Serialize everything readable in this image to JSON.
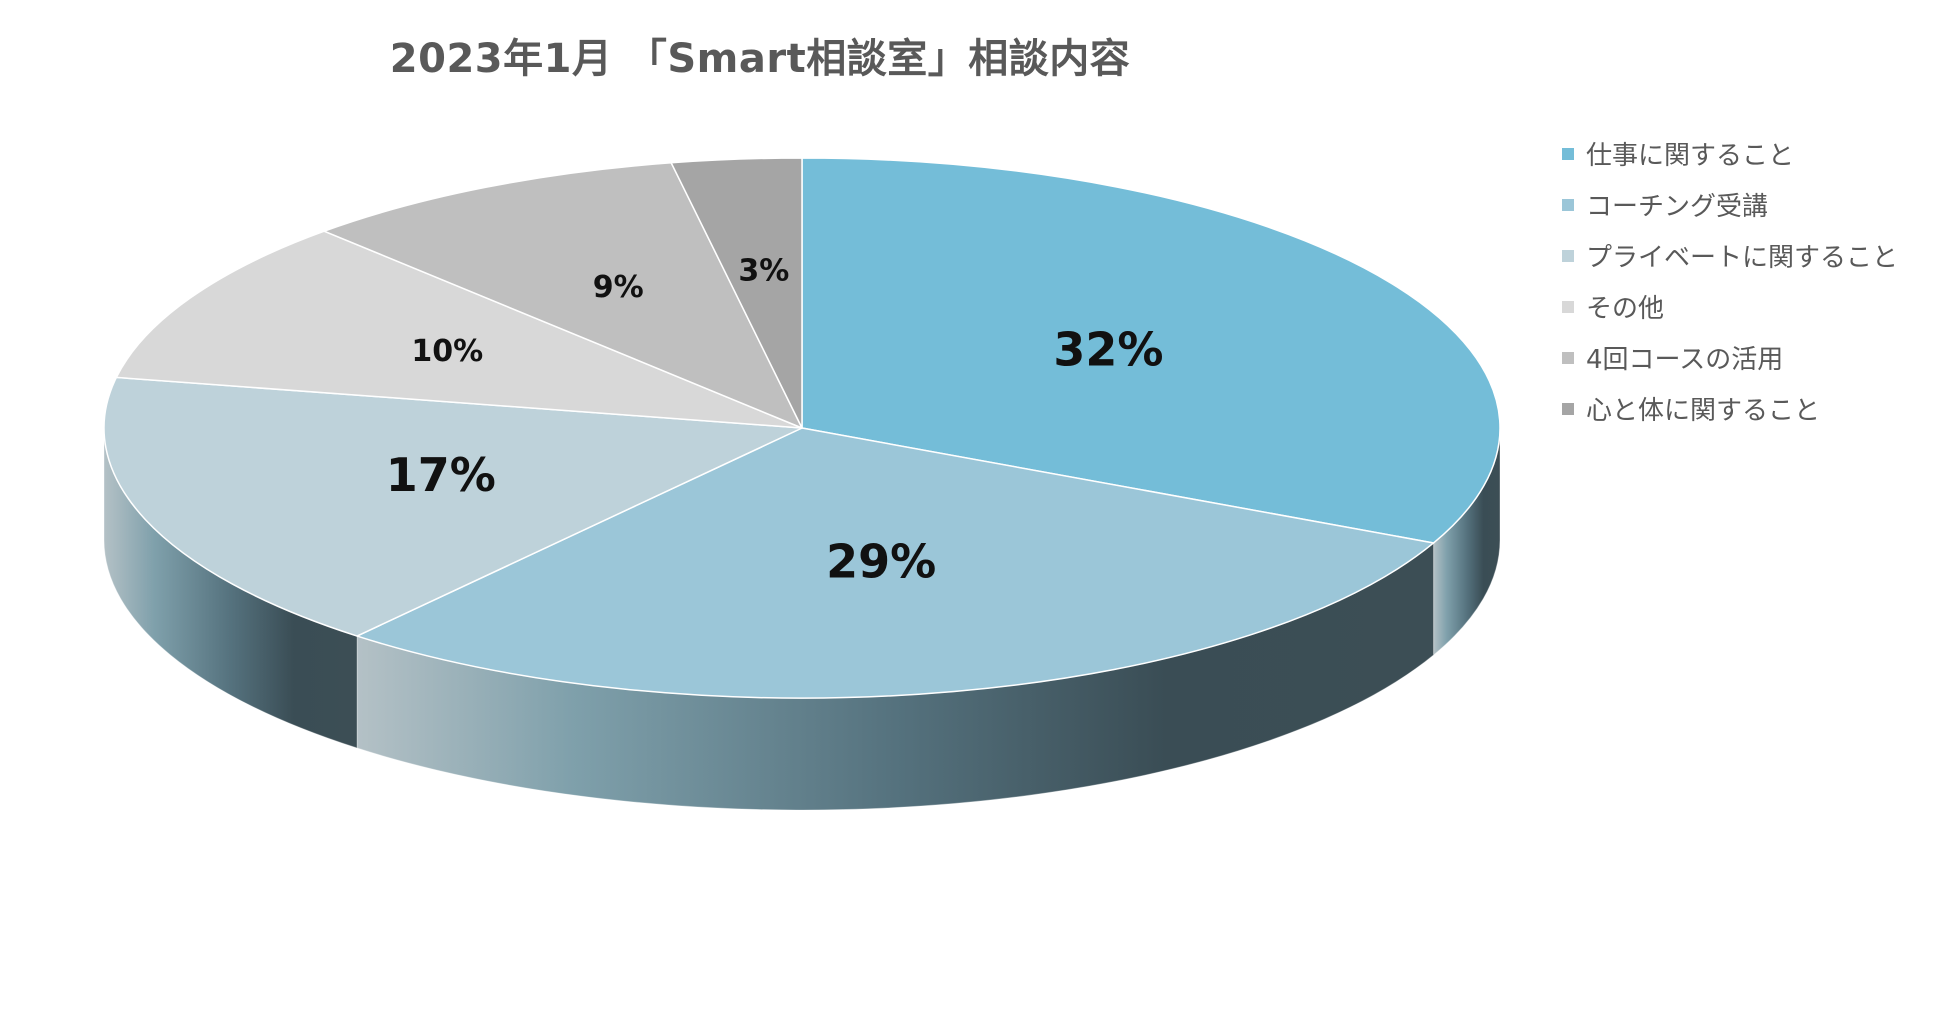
{
  "chart_data": {
    "type": "pie",
    "title": "2023年1月 「Smart相談室」相談内容",
    "legend_position": "right",
    "style": "3d",
    "slices": [
      {
        "label": "仕事に関すること",
        "value": 32,
        "display": "32%",
        "color": "#74bdd8"
      },
      {
        "label": "コーチング受講",
        "value": 29,
        "display": "29%",
        "color": "#9bc6d8"
      },
      {
        "label": "プライベートに関すること",
        "value": 17,
        "display": "17%",
        "color": "#bed2da"
      },
      {
        "label": "その他",
        "value": 10,
        "display": "10%",
        "color": "#d8d8d8"
      },
      {
        "label": "4回コースの活用",
        "value": 9,
        "display": "9%",
        "color": "#bfbfbf"
      },
      {
        "label": "心と体に関すること",
        "value": 3,
        "display": "3%",
        "color": "#a5a5a5"
      }
    ]
  }
}
